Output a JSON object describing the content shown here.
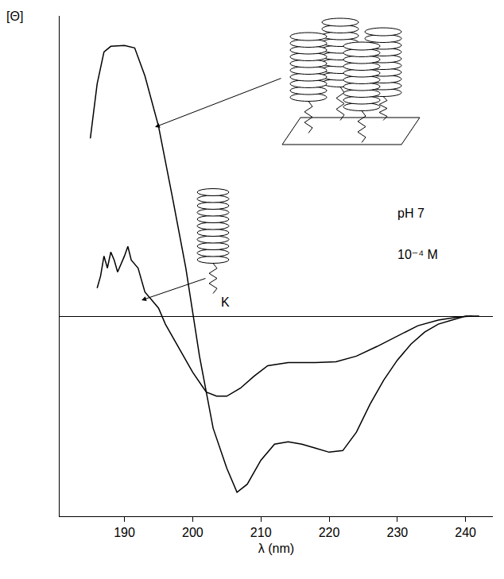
{
  "chart_data": {
    "type": "line",
    "x_label": "λ (nm)",
    "y_label": "[Θ]",
    "xlim": [
      180.5,
      244
    ],
    "xticks": [
      190,
      200,
      210,
      220,
      230,
      240
    ],
    "ylim": [
      -2.5,
      3.75
    ],
    "yticks": [],
    "tick_labels": "x",
    "grid": false,
    "annotations": [
      "pH 7",
      "10⁻⁴ M",
      "K"
    ],
    "series": [
      {
        "color": "#000000",
        "x": [
          185,
          186,
          187,
          188,
          190,
          191.5,
          193,
          195,
          197,
          199,
          200,
          201,
          203,
          205,
          206.5,
          208,
          210,
          212,
          214,
          216,
          218,
          220,
          222,
          224,
          226,
          228,
          230,
          232,
          234,
          236,
          238,
          240,
          242
        ],
        "values": [
          2.22,
          2.9,
          3.3,
          3.37,
          3.38,
          3.35,
          3.0,
          2.37,
          1.5,
          0.6,
          0.05,
          -0.5,
          -1.4,
          -1.9,
          -2.2,
          -2.1,
          -1.8,
          -1.6,
          -1.57,
          -1.6,
          -1.65,
          -1.7,
          -1.68,
          -1.45,
          -1.1,
          -0.8,
          -0.55,
          -0.35,
          -0.2,
          -0.1,
          -0.05,
          0,
          0
        ]
      },
      {
        "color": "#000000",
        "x": [
          186,
          186.5,
          187,
          187.5,
          188,
          188.5,
          189,
          190,
          190.5,
          191,
          192,
          193,
          194,
          195,
          196,
          198,
          200,
          202,
          203.5,
          205,
          207,
          209,
          211,
          214,
          218,
          221,
          224,
          227,
          230,
          233,
          236,
          239,
          241
        ],
        "values": [
          0.35,
          0.5,
          0.75,
          0.6,
          0.8,
          0.7,
          0.55,
          0.75,
          0.87,
          0.7,
          0.6,
          0.3,
          0.2,
          0.1,
          -0.1,
          -0.4,
          -0.7,
          -0.95,
          -1.0,
          -1.0,
          -0.9,
          -0.75,
          -0.62,
          -0.58,
          -0.58,
          -0.57,
          -0.5,
          -0.38,
          -0.25,
          -0.12,
          -0.05,
          -0.01,
          0
        ]
      }
    ]
  }
}
